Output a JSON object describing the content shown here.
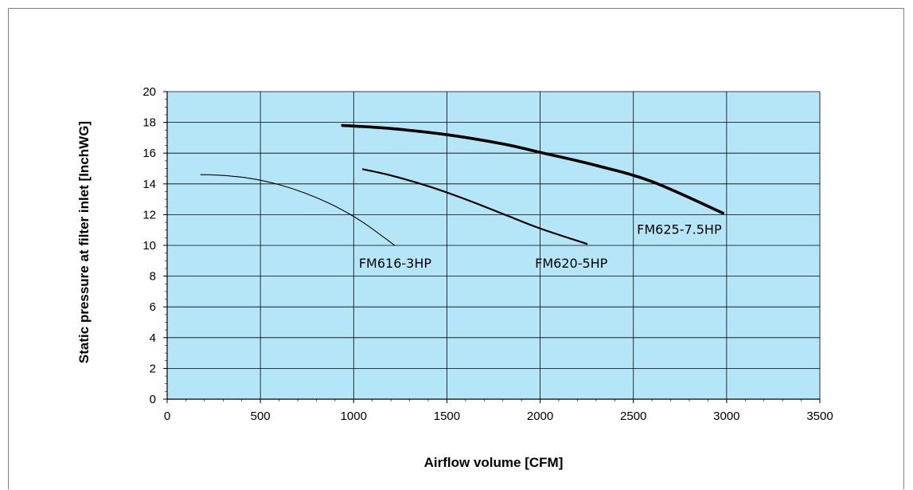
{
  "chart_data": {
    "type": "line",
    "title": "",
    "xlabel": "Airflow volume [CFM]",
    "ylabel": "Static pressure at filter inlet [InchWG]",
    "xlim": [
      0,
      3500
    ],
    "ylim": [
      0,
      20
    ],
    "xticks": [
      0,
      500,
      1000,
      1500,
      2000,
      2500,
      3000,
      3500
    ],
    "yticks": [
      0,
      2,
      4,
      6,
      8,
      10,
      12,
      14,
      16,
      18,
      20
    ],
    "grid": true,
    "plot_background": "#b5e6f8",
    "line_color": "#000000",
    "series": [
      {
        "name": "FM616-3HP",
        "x": [
          180,
          300,
          450,
          600,
          750,
          900,
          1050,
          1220
        ],
        "y": [
          14.6,
          14.55,
          14.35,
          13.95,
          13.35,
          12.55,
          11.5,
          10.0
        ]
      },
      {
        "name": "FM620-5HP",
        "x": [
          1050,
          1200,
          1400,
          1600,
          1800,
          2000,
          2250
        ],
        "y": [
          14.95,
          14.55,
          13.85,
          13.0,
          12.05,
          11.1,
          10.1
        ]
      },
      {
        "name": "FM625-7.5HP",
        "x": [
          940,
          1200,
          1500,
          1800,
          2000,
          2300,
          2600,
          2980
        ],
        "y": [
          17.8,
          17.6,
          17.2,
          16.6,
          16.05,
          15.2,
          14.15,
          12.1
        ]
      }
    ]
  }
}
